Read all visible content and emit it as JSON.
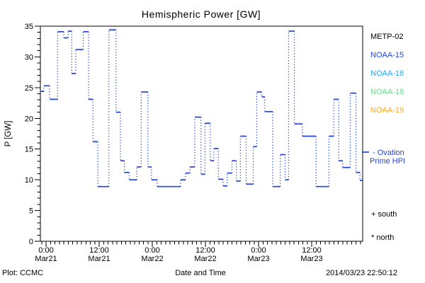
{
  "title": "Hemispheric Power [GW]",
  "footer": {
    "plot_credit": "Plot: CCMC",
    "xlabel": "Date and Time",
    "timestamp": "2014/03/23 22:50:12"
  },
  "side_panel": {
    "legend": [
      {
        "label": "METP-02",
        "color": "#000000"
      },
      {
        "label": "NOAA-15",
        "color": "#2244dd"
      },
      {
        "label": "NOAA-16",
        "color": "#22aaee"
      },
      {
        "label": "NOAA-18",
        "color": "#66dd88"
      },
      {
        "label": "NOAA-19",
        "color": "#ffaa22"
      }
    ],
    "ovation_line1": "- Ovation",
    "ovation_line2": "Prime HPI",
    "ovation_color": "#2244dd",
    "south_marker": "+ south",
    "north_marker": "* north"
  },
  "chart_data": {
    "type": "line",
    "subtype": "step-with-dotted-connectors",
    "title": "Hemispheric Power [GW]",
    "xlabel": "Date and Time",
    "ylabel": "P [GW]",
    "ylim": [
      0,
      35
    ],
    "y_major_ticks": [
      0,
      5,
      10,
      15,
      20,
      25,
      30,
      35
    ],
    "y_minor_tick_gw": 1,
    "x_axis": {
      "minor_tick_hours": 1,
      "major_tick_hours": 12,
      "hours_range": [
        -1.28,
        71.52
      ]
    },
    "x_ticks": [
      {
        "hour": 0,
        "time": "0:00",
        "date": "Mar21"
      },
      {
        "hour": 12,
        "time": "12:00",
        "date": "Mar21"
      },
      {
        "hour": 24,
        "time": "0:00",
        "date": "Mar22"
      },
      {
        "hour": 36,
        "time": "12:00",
        "date": "Mar22"
      },
      {
        "hour": 48,
        "time": "0:00",
        "date": "Mar23"
      },
      {
        "hour": 60,
        "time": "12:00",
        "date": "Mar23"
      }
    ],
    "grid": false,
    "legend_position": "right-outside",
    "series": [
      {
        "name": "NOAA-15",
        "color": "#2244dd",
        "hours_from": "Mar21 00:00",
        "end_hour": 71.52,
        "steps_hour_gw": [
          [
            -1.28,
            24.4
          ],
          [
            -0.5,
            25.3
          ],
          [
            0.8,
            23.1
          ],
          [
            2.6,
            34.1
          ],
          [
            4.0,
            33.1
          ],
          [
            5.0,
            34.2
          ],
          [
            5.8,
            27.3
          ],
          [
            6.7,
            31.2
          ],
          [
            8.4,
            34.1
          ],
          [
            9.6,
            23.1
          ],
          [
            10.6,
            16.2
          ],
          [
            11.7,
            8.9
          ],
          [
            14.2,
            34.4
          ],
          [
            15.8,
            21.0
          ],
          [
            16.8,
            13.1
          ],
          [
            17.7,
            11.2
          ],
          [
            18.8,
            10.0
          ],
          [
            20.5,
            12.1
          ],
          [
            21.5,
            24.3
          ],
          [
            23.0,
            12.1
          ],
          [
            23.8,
            10.0
          ],
          [
            25.1,
            8.9
          ],
          [
            30.4,
            10.0
          ],
          [
            31.5,
            11.1
          ],
          [
            32.5,
            12.1
          ],
          [
            33.6,
            20.2
          ],
          [
            35.0,
            10.9
          ],
          [
            35.9,
            19.2
          ],
          [
            37.1,
            13.1
          ],
          [
            37.9,
            15.1
          ],
          [
            38.9,
            10.1
          ],
          [
            40.0,
            9.0
          ],
          [
            40.9,
            11.1
          ],
          [
            42.0,
            13.1
          ],
          [
            43.0,
            9.8
          ],
          [
            43.9,
            17.1
          ],
          [
            45.2,
            9.3
          ],
          [
            46.8,
            15.4
          ],
          [
            47.6,
            24.3
          ],
          [
            48.7,
            23.5
          ],
          [
            49.4,
            21.1
          ],
          [
            51.2,
            8.9
          ],
          [
            52.9,
            14.1
          ],
          [
            54.0,
            10.0
          ],
          [
            54.8,
            34.2
          ],
          [
            56.1,
            19.1
          ],
          [
            57.9,
            17.1
          ],
          [
            61.0,
            8.9
          ],
          [
            63.9,
            17.1
          ],
          [
            65.0,
            23.1
          ],
          [
            66.1,
            13.1
          ],
          [
            67.0,
            12.0
          ],
          [
            68.7,
            24.1
          ],
          [
            70.0,
            11.2
          ],
          [
            70.9,
            9.9
          ]
        ]
      }
    ]
  }
}
